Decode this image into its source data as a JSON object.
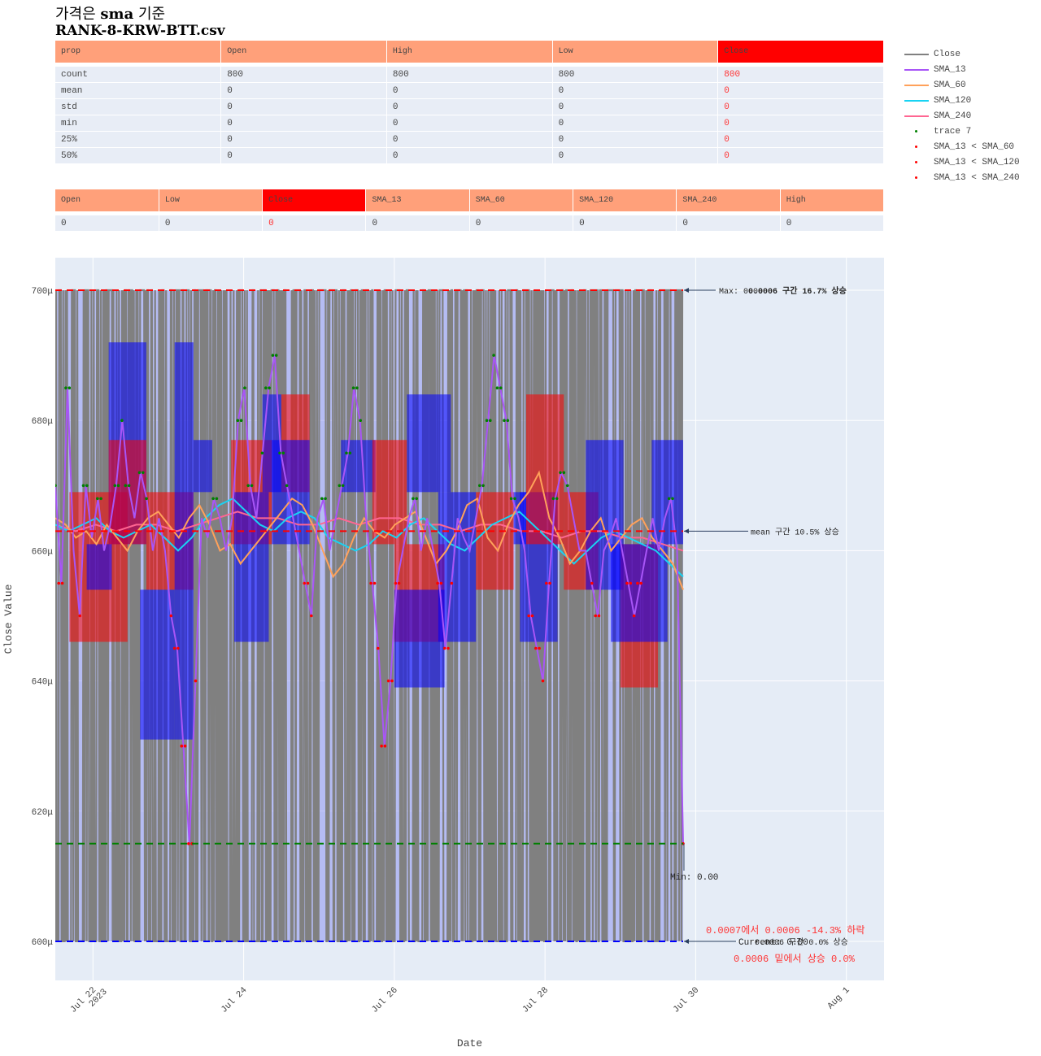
{
  "title": {
    "line1_prefix": "가격은 ",
    "line1_bold": "sma",
    "line1_suffix": " 기준",
    "line2": "RANK-8-KRW-BTT.csv"
  },
  "stats_table": {
    "headers": [
      "prop",
      "Open",
      "High",
      "Low",
      "Close"
    ],
    "highlight_col": 4,
    "rows": [
      [
        "count",
        "800",
        "800",
        "800",
        "800"
      ],
      [
        "mean",
        "0",
        "0",
        "0",
        "0"
      ],
      [
        "std",
        "0",
        "0",
        "0",
        "0"
      ],
      [
        "min",
        "0",
        "0",
        "0",
        "0"
      ],
      [
        "25%",
        "0",
        "0",
        "0",
        "0"
      ],
      [
        "50%",
        "0",
        "0",
        "0",
        "0"
      ]
    ]
  },
  "latest_table": {
    "headers": [
      "Open",
      "Low",
      "Close",
      "SMA_13",
      "SMA_60",
      "SMA_120",
      "SMA_240",
      "High"
    ],
    "highlight_col": 2,
    "rows": [
      [
        "0",
        "0",
        "0",
        "0",
        "0",
        "0",
        "0",
        "0"
      ]
    ]
  },
  "legend": [
    {
      "name": "Close",
      "color": "#808080",
      "kind": "line"
    },
    {
      "name": "SMA_13",
      "color": "#a855f7",
      "kind": "line"
    },
    {
      "name": "SMA_60",
      "color": "#ffa15a",
      "kind": "line"
    },
    {
      "name": "SMA_120",
      "color": "#19d3f3",
      "kind": "line"
    },
    {
      "name": "SMA_240",
      "color": "#ff6692",
      "kind": "line"
    },
    {
      "name": "trace 7",
      "color": "#008000",
      "kind": "marker"
    },
    {
      "name": "SMA_13 < SMA_60",
      "color": "#ff0000",
      "kind": "marker"
    },
    {
      "name": "SMA_13 < SMA_120",
      "color": "#ff0000",
      "kind": "marker"
    },
    {
      "name": "SMA_13 < SMA_240",
      "color": "#ff0000",
      "kind": "marker"
    }
  ],
  "chart_data": {
    "type": "line",
    "xlabel": "Date",
    "ylabel": "Close Value",
    "x_range": [
      "2023-07-21 12:00",
      "2023-08-01 12:00"
    ],
    "y_range": [
      0.000594,
      0.000705
    ],
    "y_ticks": [
      {
        "v": 0.0006,
        "label": "600μ"
      },
      {
        "v": 0.00062,
        "label": "620μ"
      },
      {
        "v": 0.00064,
        "label": "640μ"
      },
      {
        "v": 0.00066,
        "label": "660μ"
      },
      {
        "v": 0.00068,
        "label": "680μ"
      },
      {
        "v": 0.0007,
        "label": "700μ"
      }
    ],
    "x_ticks": [
      {
        "v": "2023-07-22",
        "label": "Jul 22",
        "label2": "2023"
      },
      {
        "v": "2023-07-24",
        "label": "Jul 24",
        "label2": ""
      },
      {
        "v": "2023-07-26",
        "label": "Jul 26",
        "label2": ""
      },
      {
        "v": "2023-07-28",
        "label": "Jul 28",
        "label2": ""
      },
      {
        "v": "2023-07-30",
        "label": "Jul 30",
        "label2": ""
      },
      {
        "v": "2023-08-01",
        "label": "Aug 1",
        "label2": ""
      }
    ],
    "data_start": "2023-07-21 12:00",
    "data_end": "2023-07-29 20:00",
    "close_levels": [
      0.0006,
      0.0007
    ],
    "hlines": [
      {
        "v": 0.0007,
        "color": "#ff0000"
      },
      {
        "v": 0.000663,
        "color": "#ff0000"
      },
      {
        "v": 0.000615,
        "color": "#008000"
      },
      {
        "v": 0.0006,
        "color": "#0000ff"
      }
    ],
    "sma_13": [
      0.00067,
      0.000655,
      0.000685,
      0.00066,
      0.00065,
      0.00067,
      0.000662,
      0.000668,
      0.00066,
      0.000664,
      0.00067,
      0.00068,
      0.00067,
      0.000665,
      0.000672,
      0.000668,
      0.00066,
      0.000665,
      0.00066,
      0.00065,
      0.000645,
      0.00063,
      0.000615,
      0.00064,
      0.000665,
      0.000662,
      0.000668,
      0.000665,
      0.00066,
      0.000665,
      0.00068,
      0.000685,
      0.00067,
      0.000665,
      0.000675,
      0.000685,
      0.00069,
      0.000675,
      0.00067,
      0.000665,
      0.00066,
      0.000655,
      0.00065,
      0.000665,
      0.000668,
      0.00066,
      0.000665,
      0.00067,
      0.000675,
      0.000685,
      0.00068,
      0.000665,
      0.000655,
      0.000645,
      0.00063,
      0.00064,
      0.000655,
      0.00066,
      0.000665,
      0.000668,
      0.00066,
      0.000665,
      0.00066,
      0.000655,
      0.000645,
      0.000655,
      0.000665,
      0.000662,
      0.00066,
      0.000665,
      0.00067,
      0.00068,
      0.00069,
      0.000685,
      0.00068,
      0.000668,
      0.000665,
      0.00066,
      0.00065,
      0.000645,
      0.00064,
      0.000655,
      0.000668,
      0.000672,
      0.00067,
      0.000665,
      0.00066,
      0.00066,
      0.000655,
      0.00065,
      0.00066,
      0.000662,
      0.000665,
      0.00066,
      0.000655,
      0.00065,
      0.000655,
      0.00066,
      0.000665,
      0.00066,
      0.000665,
      0.000668,
      0.00066,
      0.000615
    ],
    "sma_60": [
      0.000665,
      0.000664,
      0.000662,
      0.000663,
      0.000661,
      0.000664,
      0.000662,
      0.00066,
      0.000663,
      0.000665,
      0.000666,
      0.000664,
      0.000662,
      0.000665,
      0.000667,
      0.000664,
      0.00066,
      0.000661,
      0.000658,
      0.00066,
      0.000662,
      0.000664,
      0.000666,
      0.000668,
      0.000667,
      0.000664,
      0.00066,
      0.000656,
      0.000658,
      0.000662,
      0.000665,
      0.000663,
      0.000662,
      0.000664,
      0.000665,
      0.000666,
      0.000662,
      0.000658,
      0.00066,
      0.000663,
      0.000667,
      0.000668,
      0.000662,
      0.00066,
      0.000664,
      0.000667,
      0.000669,
      0.000672,
      0.000665,
      0.000662,
      0.000658,
      0.00066,
      0.000663,
      0.000665,
      0.00066,
      0.000662,
      0.000664,
      0.000665,
      0.000662,
      0.00066,
      0.000658,
      0.000654
    ],
    "sma_120": [
      0.000664,
      0.000663,
      0.000664,
      0.000665,
      0.000663,
      0.000662,
      0.000663,
      0.000664,
      0.000662,
      0.00066,
      0.000662,
      0.000665,
      0.000667,
      0.000668,
      0.000666,
      0.000664,
      0.000663,
      0.000665,
      0.000666,
      0.000665,
      0.000662,
      0.000661,
      0.00066,
      0.000661,
      0.000663,
      0.000662,
      0.000664,
      0.000665,
      0.000663,
      0.000661,
      0.00066,
      0.000662,
      0.000664,
      0.000665,
      0.000666,
      0.000664,
      0.000662,
      0.00066,
      0.000658,
      0.00066,
      0.000662,
      0.000663,
      0.000662,
      0.000661,
      0.00066,
      0.000658,
      0.000656
    ],
    "sma_240": [
      0.000664,
      0.000663,
      0.000664,
      0.000663,
      0.000664,
      0.000664,
      0.000663,
      0.000664,
      0.000665,
      0.000666,
      0.000665,
      0.000665,
      0.000664,
      0.000664,
      0.000665,
      0.000664,
      0.000665,
      0.000665,
      0.000664,
      0.000664,
      0.000663,
      0.000664,
      0.000664,
      0.000663,
      0.000663,
      0.000662,
      0.000663,
      0.000663,
      0.000662,
      0.000662,
      0.000661,
      0.00066
    ],
    "boxes": [
      {
        "x0": "2023-07-21 16:30",
        "x1": "2023-07-22 11:00",
        "y0": 0.000646,
        "y1": 0.000669,
        "color": "#ff0000"
      },
      {
        "x0": "2023-07-21 22:00",
        "x1": "2023-07-22 06:00",
        "y0": 0.000654,
        "y1": 0.000661,
        "color": "#0000ff"
      },
      {
        "x0": "2023-07-22 05:00",
        "x1": "2023-07-22 17:00",
        "y0": 0.000661,
        "y1": 0.000692,
        "color": "#0000ff"
      },
      {
        "x0": "2023-07-22 05:00",
        "x1": "2023-07-22 17:00",
        "y0": 0.000661,
        "y1": 0.000677,
        "color": "#ff0000"
      },
      {
        "x0": "2023-07-22 17:00",
        "x1": "2023-07-23 08:00",
        "y0": 0.000654,
        "y1": 0.000669,
        "color": "#ff0000"
      },
      {
        "x0": "2023-07-22 15:00",
        "x1": "2023-07-23 02:00",
        "y0": 0.000631,
        "y1": 0.000654,
        "color": "#0000ff"
      },
      {
        "x0": "2023-07-23 02:00",
        "x1": "2023-07-23 08:00",
        "y0": 0.000631,
        "y1": 0.000692,
        "color": "#0000ff"
      },
      {
        "x0": "2023-07-23 08:00",
        "x1": "2023-07-23 14:00",
        "y0": 0.000669,
        "y1": 0.000677,
        "color": "#0000ff"
      },
      {
        "x0": "2023-07-23 20:00",
        "x1": "2023-07-24 09:00",
        "y0": 0.000661,
        "y1": 0.000677,
        "color": "#ff0000"
      },
      {
        "x0": "2023-07-23 21:00",
        "x1": "2023-07-24 08:00",
        "y0": 0.000646,
        "y1": 0.000669,
        "color": "#0000ff"
      },
      {
        "x0": "2023-07-24 06:00",
        "x1": "2023-07-24 12:00",
        "y0": 0.000669,
        "y1": 0.000684,
        "color": "#0000ff"
      },
      {
        "x0": "2023-07-24 12:00",
        "x1": "2023-07-24 21:00",
        "y0": 0.000669,
        "y1": 0.000684,
        "color": "#ff0000"
      },
      {
        "x0": "2023-07-24 09:00",
        "x1": "2023-07-24 21:00",
        "y0": 0.000661,
        "y1": 0.000677,
        "color": "#0000ff"
      },
      {
        "x0": "2023-07-25 07:00",
        "x1": "2023-07-25 18:00",
        "y0": 0.000669,
        "y1": 0.000677,
        "color": "#0000ff"
      },
      {
        "x0": "2023-07-25 17:00",
        "x1": "2023-07-26 04:00",
        "y0": 0.000661,
        "y1": 0.000677,
        "color": "#ff0000"
      },
      {
        "x0": "2023-07-26 00:00",
        "x1": "2023-07-26 16:00",
        "y0": 0.000646,
        "y1": 0.000661,
        "color": "#ff0000"
      },
      {
        "x0": "2023-07-26 00:00",
        "x1": "2023-07-26 16:00",
        "y0": 0.000639,
        "y1": 0.000654,
        "color": "#0000ff"
      },
      {
        "x0": "2023-07-26 04:00",
        "x1": "2023-07-26 18:00",
        "y0": 0.000669,
        "y1": 0.000684,
        "color": "#0000ff"
      },
      {
        "x0": "2023-07-26 14:00",
        "x1": "2023-07-27 02:00",
        "y0": 0.000646,
        "y1": 0.000669,
        "color": "#0000ff"
      },
      {
        "x0": "2023-07-27 02:00",
        "x1": "2023-07-27 14:00",
        "y0": 0.000654,
        "y1": 0.000669,
        "color": "#ff0000"
      },
      {
        "x0": "2023-07-27 14:00",
        "x1": "2023-07-27 18:00",
        "y0": 0.000661,
        "y1": 0.000669,
        "color": "#0000ff"
      },
      {
        "x0": "2023-07-27 16:00",
        "x1": "2023-07-28 04:00",
        "y0": 0.000646,
        "y1": 0.000669,
        "color": "#0000ff"
      },
      {
        "x0": "2023-07-27 18:00",
        "x1": "2023-07-28 06:00",
        "y0": 0.000661,
        "y1": 0.000684,
        "color": "#ff0000"
      },
      {
        "x0": "2023-07-28 06:00",
        "x1": "2023-07-28 17:00",
        "y0": 0.000654,
        "y1": 0.000669,
        "color": "#ff0000"
      },
      {
        "x0": "2023-07-28 13:00",
        "x1": "2023-07-29 01:00",
        "y0": 0.000654,
        "y1": 0.000677,
        "color": "#0000ff"
      },
      {
        "x0": "2023-07-29 00:00",
        "x1": "2023-07-29 12:00",
        "y0": 0.000639,
        "y1": 0.000661,
        "color": "#ff0000"
      },
      {
        "x0": "2023-07-28 21:00",
        "x1": "2023-07-29 15:00",
        "y0": 0.000646,
        "y1": 0.000661,
        "color": "#0000ff"
      },
      {
        "x0": "2023-07-29 10:00",
        "x1": "2023-07-29 20:00",
        "y0": 0.000661,
        "y1": 0.000677,
        "color": "#0000ff"
      }
    ],
    "annotations": {
      "max": "Max: 0.00",
      "range_up": "0.0006 구간 16.7% 상승",
      "mean": "mean 구간 10.5% 상승",
      "min": "Min: 0.00",
      "current": "Current: 0.00",
      "current_range": "0.0006 구간 0.0% 상승",
      "drop": "0.0007에서 0.0006 -14.3% 하락",
      "rise": "0.0006 밑에서 상승 0.0%"
    }
  }
}
